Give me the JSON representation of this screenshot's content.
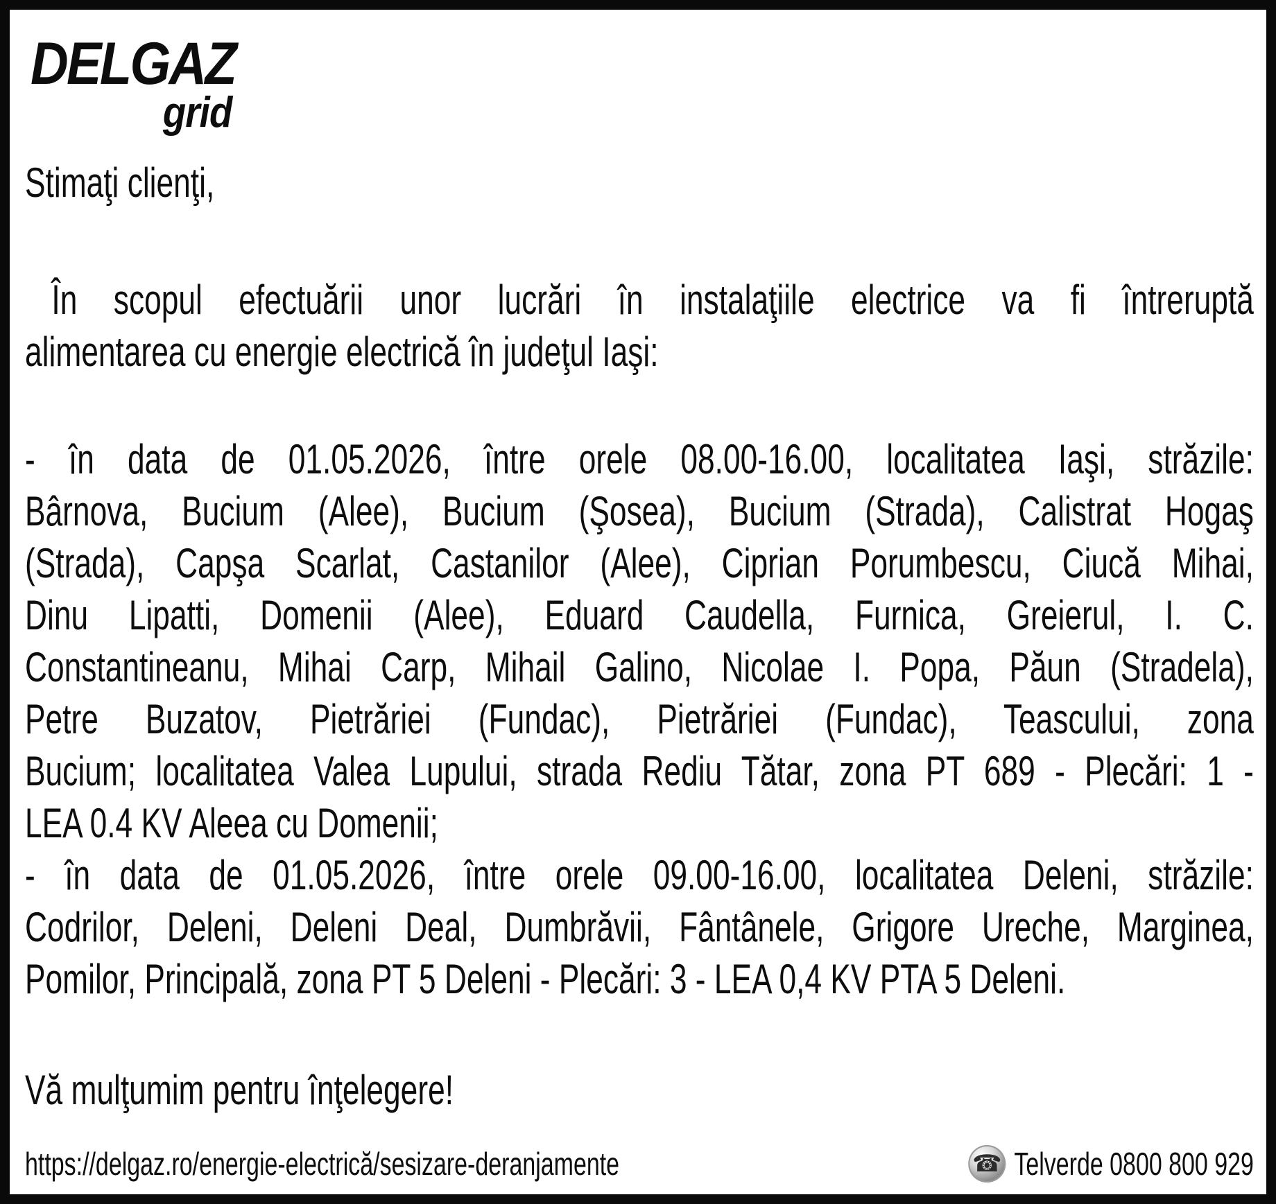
{
  "logo": {
    "brand": "DELGAZ",
    "sub": "grid"
  },
  "greeting": "Stimaţi clienţi,",
  "intro": {
    "lines": [
      "În scopul efectuării unor lucrări în instalaţiile electrice va fi întreruptă",
      "alimentarea cu energie electrică în judeţul Iaşi:"
    ]
  },
  "schedule": {
    "lines": [
      "- în data de 01.05.2026, între orele 08.00-16.00, localitatea Iaşi, străzile:",
      "Bârnova, Bucium (Alee), Bucium (Şosea), Bucium (Strada), Calistrat Hogaş",
      "(Strada), Capşa Scarlat, Castanilor (Alee), Ciprian Porumbescu, Ciucă Mihai,",
      "Dinu Lipatti, Domenii (Alee), Eduard Caudella, Furnica, Greierul, I. C.",
      "Constantineanu, Mihai Carp, Mihail Galino, Nicolae I. Popa, Păun (Stradela),",
      "Petre Buzatov, Pietrăriei (Fundac), Pietrăriei (Fundac), Teascului, zona",
      "Bucium; localitatea Valea Lupului, strada Rediu Tătar, zona PT 689 - Plecări: 1 -",
      "LEA 0.4 KV Aleea cu Domenii;",
      "- în data de 01.05.2026, între orele 09.00-16.00, localitatea Deleni, străzile:",
      "Codrilor, Deleni, Deleni Deal, Dumbrăvii, Fântânele, Grigore Ureche, Marginea,",
      "Pomilor, Principală, zona PT 5 Deleni - Plecări: 3 - LEA 0,4 KV PTA 5 Deleni."
    ]
  },
  "closing": "Vă mulţumim pentru înţelegere!",
  "footer": {
    "url": "https://delgaz.ro/energie-electrică/sesizare-deranjamente",
    "phone_icon_glyph": "☎",
    "phone_label": "Telverde 0800 800 929"
  }
}
